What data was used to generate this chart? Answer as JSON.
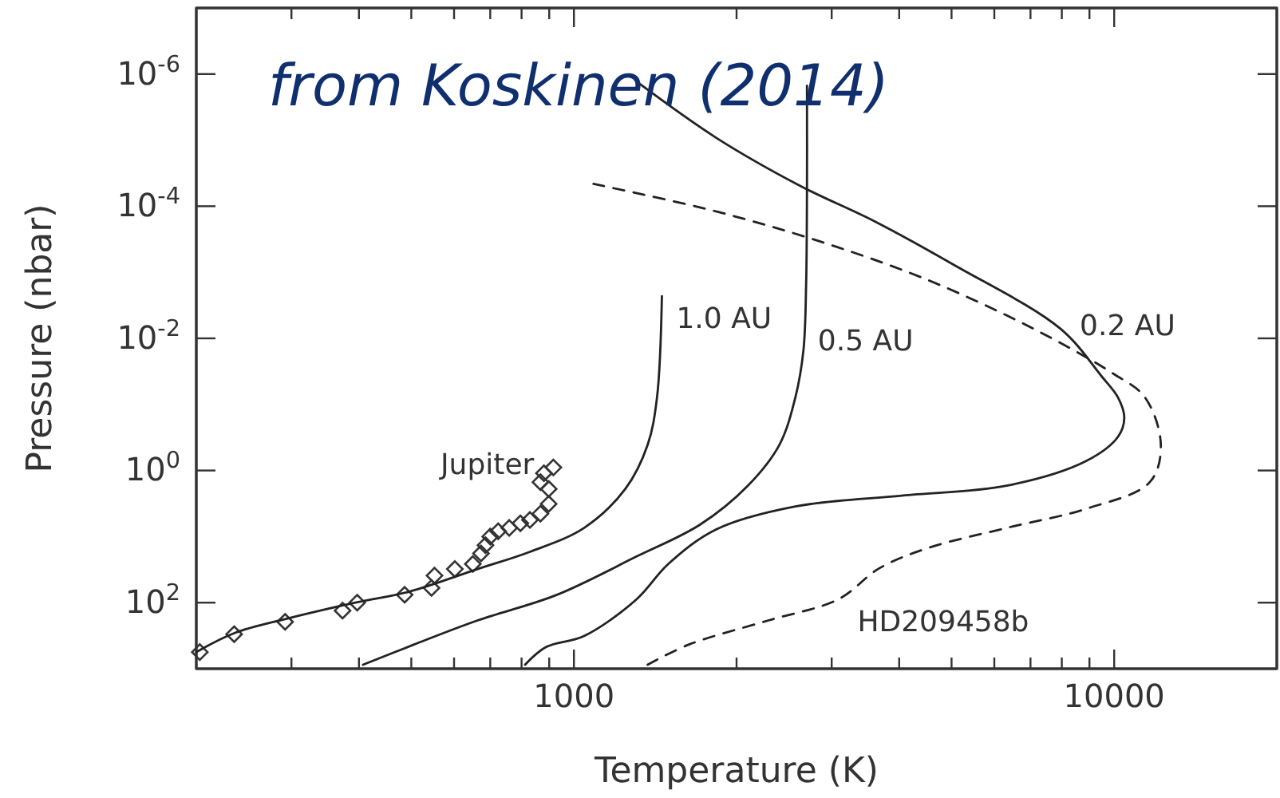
{
  "chart_data": {
    "type": "line",
    "xlabel": "Temperature (K)",
    "ylabel": "Pressure (nbar)",
    "log": "xy",
    "xlim": [
      200,
      20000
    ],
    "xticks": [
      {
        "value": 300,
        "label": null
      },
      {
        "value": 400,
        "label": null
      },
      {
        "value": 500,
        "label": null
      },
      {
        "value": 600,
        "label": null
      },
      {
        "value": 700,
        "label": null
      },
      {
        "value": 800,
        "label": null
      },
      {
        "value": 900,
        "label": null
      },
      1000,
      {
        "value": 2000,
        "label": null
      },
      {
        "value": 3000,
        "label": null
      },
      {
        "value": 4000,
        "label": null
      },
      {
        "value": 5000,
        "label": null
      },
      {
        "value": 6000,
        "label": null
      },
      {
        "value": 7000,
        "label": null
      },
      {
        "value": 8000,
        "label": null
      },
      {
        "value": 9000,
        "label": null
      },
      10000
    ],
    "ylim": [
      1000,
      1e-07
    ],
    "yticks": [
      {
        "value": 1e-06,
        "label": "10$^{-6}$"
      },
      {
        "value": 0.0001,
        "label": "10$^{-4}$"
      },
      {
        "value": 0.01,
        "label": "10$^{-2}$"
      },
      {
        "value": 1,
        "label": "10$^{0}$"
      },
      {
        "value": 100,
        "label": "10$^{2}$"
      }
    ],
    "grid": false,
    "annotations": [
      "from Koskinen (2014)"
    ],
    "series": [
      {
        "name": "Jupiter",
        "type": "scatter",
        "marker": "diamond",
        "color": "#333333",
        "x": [
          203,
          235,
          292,
          373,
          397,
          486,
          545,
          552,
          602,
          650,
          673,
          686,
          700,
          724,
          759,
          796,
          829,
          867,
          898,
          898,
          867,
          880,
          916
        ],
        "values": [
          560,
          300,
          195,
          132,
          100,
          76,
          60,
          39,
          31,
          26,
          18,
          13.5,
          10,
          8.3,
          7.4,
          6.3,
          5.6,
          4.5,
          3.2,
          1.9,
          1.5,
          1.1,
          0.9
        ]
      },
      {
        "name": "1.0 AU",
        "line_style": "solid",
        "color": "#222222",
        "x": [
          200,
          235,
          294,
          394,
          496,
          663,
          829,
          1044,
          1245,
          1369,
          1425,
          1455
        ],
        "values": [
          560,
          290,
          175,
          100,
          68,
          31,
          17,
          7.4,
          1.9,
          0.41,
          0.078,
          0.0023
        ]
      },
      {
        "name": "0.5 AU",
        "line_style": "solid",
        "color": "#222222",
        "x": [
          407,
          506,
          663,
          930,
          1306,
          1711,
          2098,
          2400,
          2570,
          2660,
          2690,
          2700,
          2700
        ],
        "values": [
          870,
          430,
          186,
          76,
          20,
          6.6,
          1.7,
          0.41,
          0.078,
          0.015,
          0.0016,
          6e-05,
          1.5e-06
        ]
      },
      {
        "name": "0.2 AU",
        "line_style": "solid",
        "color": "#222222",
        "x": [
          812,
          888,
          1044,
          1306,
          1495,
          1833,
          2570,
          4045,
          6320,
          8870,
          10160,
          10440,
          10160,
          9490,
          7960,
          5060,
          3605,
          2620,
          1833,
          1306
        ],
        "values": [
          870,
          470,
          320,
          89,
          26,
          7.8,
          3.5,
          2.4,
          1.7,
          0.72,
          0.31,
          0.16,
          0.078,
          0.038,
          0.0072,
          0.00078,
          0.00017,
          4.9e-05,
          9.2e-06,
          1.3e-06
        ]
      },
      {
        "name": "HD209458b",
        "line_style": "dashed",
        "color": "#222222",
        "x": [
          1369,
          1633,
          2290,
          3085,
          3680,
          4510,
          6320,
          8870,
          11640,
          12200,
          11400,
          9950,
          7100,
          4510,
          2880,
          1833,
          1087
        ],
        "values": [
          870,
          430,
          186,
          89,
          30,
          15,
          7.4,
          3.8,
          1.5,
          0.41,
          0.078,
          0.034,
          0.0072,
          0.0013,
          0.00035,
          0.00012,
          4.6e-05
        ]
      }
    ]
  }
}
